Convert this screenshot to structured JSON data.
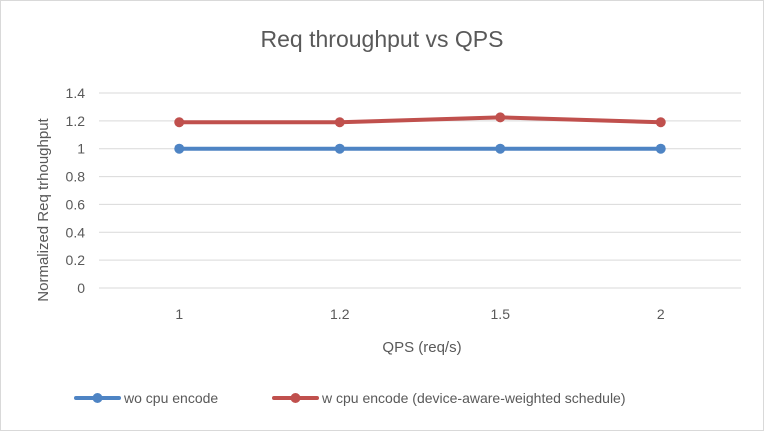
{
  "chart_data": {
    "type": "line",
    "title": "Req throughput vs QPS",
    "xlabel": "QPS (req/s)",
    "ylabel": "Normalized Req trhoughput",
    "categories": [
      "1",
      "1.2",
      "1.5",
      "2"
    ],
    "ylim": [
      0,
      1.4
    ],
    "yticks": [
      "0",
      "0.2",
      "0.4",
      "0.6",
      "0.8",
      "1",
      "1.2",
      "1.4"
    ],
    "grid": true,
    "legend_position": "bottom",
    "series": [
      {
        "name": "wo cpu encode",
        "values": [
          1.0,
          1.0,
          1.0,
          1.0
        ],
        "color": "#4e84c4"
      },
      {
        "name": "w cpu encode (device-aware-weighted schedule)",
        "values": [
          1.19,
          1.19,
          1.225,
          1.19
        ],
        "color": "#c0504d"
      }
    ]
  }
}
